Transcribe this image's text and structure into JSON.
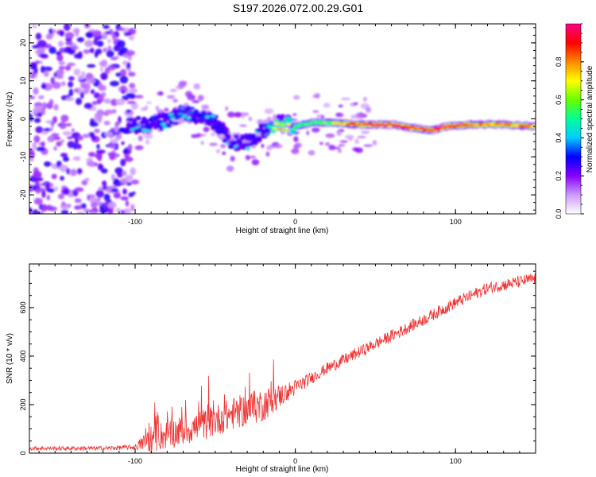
{
  "title": "S197.2026.072.00.29.G01",
  "chart_data": [
    {
      "type": "heatmap",
      "xlabel": "Height of straight line (km)",
      "ylabel": "Frequency (Hz)",
      "xlim": [
        -166,
        150
      ],
      "ylim": [
        -25,
        25
      ],
      "xticks": [
        -100,
        0,
        100
      ],
      "yticks": [
        -20,
        -10,
        0,
        10,
        20
      ],
      "colorbar": {
        "label": "Normalized spectral amplitude",
        "range": [
          0,
          1
        ],
        "ticks": [
          "0.0",
          "0.2",
          "0.4",
          "0.6",
          "0.8"
        ],
        "colors": [
          "#ffffff",
          "#cc99ff",
          "#8800ff",
          "#0000ff",
          "#00ccff",
          "#00ff99",
          "#66ff00",
          "#ffff00",
          "#ff8800",
          "#ff0000",
          "#ff0088"
        ]
      },
      "ridge": {
        "x": [
          -100,
          -90,
          -80,
          -70,
          -60,
          -50,
          -40,
          -30,
          -20,
          -10,
          0,
          10,
          20,
          40,
          60,
          75,
          85,
          95,
          110,
          130,
          150
        ],
        "y": [
          -1.5,
          -1.5,
          -0.5,
          1.5,
          1,
          -1,
          -6,
          -6.5,
          -3,
          -1,
          -2,
          -1,
          -1,
          -1.5,
          -1.5,
          -2.5,
          -3,
          -2,
          -1.5,
          -1.5,
          -2
        ],
        "amplitude": [
          0.25,
          0.3,
          0.3,
          0.35,
          0.3,
          0.3,
          0.25,
          0.25,
          0.3,
          0.75,
          0.55,
          0.55,
          0.6,
          0.9,
          0.95,
          0.9,
          0.9,
          0.95,
          0.85,
          0.8,
          0.8
        ]
      },
      "noise_region_x": [
        -166,
        -100
      ]
    },
    {
      "type": "line",
      "xlabel": "Height of straight line (km)",
      "ylabel": "SNR (10 * v/v)",
      "xlim": [
        -166,
        150
      ],
      "ylim": [
        0,
        780
      ],
      "xticks": [
        -100,
        0,
        100
      ],
      "yticks": [
        0,
        200,
        400,
        600
      ],
      "color": "#ee3333",
      "trend": {
        "x": [
          -166,
          -120,
          -100,
          -90,
          -60,
          -40,
          -20,
          0,
          20,
          50,
          80,
          100,
          120,
          150
        ],
        "y": [
          20,
          20,
          25,
          60,
          110,
          160,
          200,
          270,
          350,
          450,
          550,
          620,
          680,
          720
        ]
      },
      "noise_amplitude": {
        "x": [
          -166,
          -100,
          -90,
          -20,
          -5,
          10,
          150
        ],
        "y": [
          8,
          10,
          60,
          70,
          40,
          25,
          25
        ]
      }
    }
  ]
}
